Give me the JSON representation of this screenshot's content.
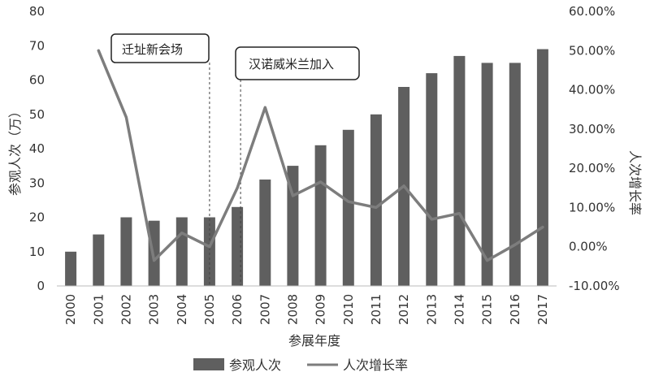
{
  "chart_data": {
    "type": "bar",
    "categories": [
      "2000",
      "2001",
      "2002",
      "2003",
      "2004",
      "2005",
      "2006",
      "2007",
      "2008",
      "2009",
      "2010",
      "2011",
      "2012",
      "2013",
      "2014",
      "2015",
      "2016",
      "2017"
    ],
    "series": [
      {
        "name": "参观人次",
        "type": "bar",
        "axis": "left",
        "values": [
          10,
          15,
          20,
          19,
          20,
          20,
          23,
          31,
          35,
          41,
          45.5,
          50,
          58,
          62,
          67,
          65,
          65,
          69
        ]
      },
      {
        "name": "人次增长率",
        "type": "line",
        "axis": "right",
        "values": [
          null,
          50,
          33,
          -3.5,
          3.5,
          0,
          15,
          35.5,
          13,
          16.5,
          11.5,
          10,
          15.5,
          7,
          8.5,
          -3.5,
          0.5,
          5
        ]
      }
    ],
    "xlabel": "参展年度",
    "ylabel": "参观人次（万）",
    "y2label": "人次增长率",
    "ylim": [
      0,
      80
    ],
    "yticks": [
      "0",
      "10",
      "20",
      "30",
      "40",
      "50",
      "60",
      "70",
      "80"
    ],
    "y2lim": [
      -10,
      60
    ],
    "y2ticks": [
      "-10.00%",
      "0.00%",
      "10.00%",
      "20.00%",
      "30.00%",
      "40.00%",
      "50.00%",
      "60.00%"
    ],
    "legend_position": "bottom",
    "grid": false,
    "colors": {
      "bar": "#5f5f5f",
      "line": "#7d7d7d"
    },
    "annotations": [
      {
        "text": "迁址新会场",
        "year": "2005"
      },
      {
        "text": "汉诺威米兰加入",
        "year": "2006"
      }
    ]
  }
}
